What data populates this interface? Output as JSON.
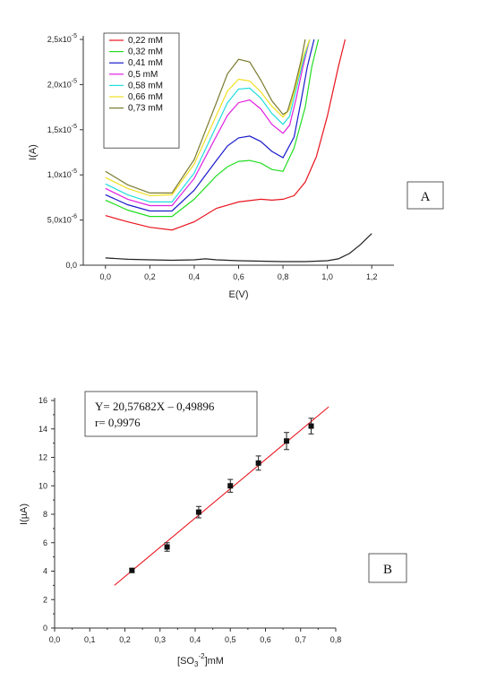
{
  "chart_data": [
    {
      "type": "line",
      "panel_label": "A",
      "xlabel": "E(V)",
      "ylabel": "I(A)",
      "xlim": [
        -0.1,
        1.3
      ],
      "ylim": [
        0,
        2.5e-05
      ],
      "x_ticks": [
        0.0,
        0.2,
        0.4,
        0.6,
        0.8,
        1.0,
        1.2
      ],
      "x_tick_labels": [
        "0,0",
        "0,2",
        "0,4",
        "0,6",
        "0,8",
        "1,0",
        "1,2"
      ],
      "y_ticks": [
        0,
        5e-06,
        1e-05,
        1.5e-05,
        2e-05,
        2.5e-05
      ],
      "y_tick_labels": [
        {
          "mantissa": "0,0",
          "exp": ""
        },
        {
          "mantissa": "5,0x10",
          "exp": "-6"
        },
        {
          "mantissa": "1,0x10",
          "exp": "-5"
        },
        {
          "mantissa": "1,5x10",
          "exp": "-5"
        },
        {
          "mantissa": "2,0x10",
          "exp": "-5"
        },
        {
          "mantissa": "2,5x10",
          "exp": "-5"
        }
      ],
      "legend_position": "top-left",
      "grid": false,
      "series": [
        {
          "name": "",
          "color": "#222222",
          "x": [
            0.0,
            0.1,
            0.2,
            0.3,
            0.4,
            0.45,
            0.5,
            0.6,
            0.7,
            0.8,
            0.9,
            1.0,
            1.05,
            1.1,
            1.15,
            1.2
          ],
          "y": [
            8e-07,
            6.5e-07,
            6e-07,
            5.5e-07,
            6e-07,
            7e-07,
            6e-07,
            5e-07,
            4.5e-07,
            4e-07,
            4e-07,
            5e-07,
            7e-07,
            1.3e-06,
            2.3e-06,
            3.5e-06
          ]
        },
        {
          "name": "0,22 mM",
          "color": "#e8141e",
          "x": [
            0.0,
            0.1,
            0.2,
            0.3,
            0.4,
            0.5,
            0.6,
            0.7,
            0.75,
            0.8,
            0.85,
            0.9,
            0.95,
            1.0,
            1.05,
            1.08
          ],
          "y": [
            5.5e-06,
            4.8e-06,
            4.2e-06,
            3.9e-06,
            4.8e-06,
            6.3e-06,
            7e-06,
            7.3e-06,
            7.2e-06,
            7.3e-06,
            7.7e-06,
            9.2e-06,
            1.2e-05,
            1.65e-05,
            2.2e-05,
            2.5e-05
          ]
        },
        {
          "name": "0,32 mM",
          "color": "#22dd22",
          "x": [
            0.0,
            0.1,
            0.2,
            0.3,
            0.4,
            0.5,
            0.55,
            0.6,
            0.65,
            0.7,
            0.75,
            0.8,
            0.85,
            0.9,
            0.93,
            0.96
          ],
          "y": [
            7.2e-06,
            6.1e-06,
            5.4e-06,
            5.4e-06,
            7.3e-06,
            9.9e-06,
            1.09e-05,
            1.15e-05,
            1.16e-05,
            1.13e-05,
            1.06e-05,
            1.04e-05,
            1.3e-05,
            1.75e-05,
            2.2e-05,
            2.5e-05
          ]
        },
        {
          "name": "0,41 mM",
          "color": "#1a1acc",
          "x": [
            0.0,
            0.1,
            0.2,
            0.3,
            0.4,
            0.5,
            0.55,
            0.6,
            0.65,
            0.7,
            0.75,
            0.8,
            0.85,
            0.88,
            0.91,
            0.94
          ],
          "y": [
            7.8e-06,
            6.7e-06,
            6e-06,
            6e-06,
            8.3e-06,
            1.16e-05,
            1.32e-05,
            1.41e-05,
            1.43e-05,
            1.37e-05,
            1.26e-05,
            1.19e-05,
            1.42e-05,
            1.8e-05,
            2.2e-05,
            2.5e-05
          ]
        },
        {
          "name": "0,5 mM",
          "color": "#e020e0",
          "x": [
            0.0,
            0.1,
            0.2,
            0.3,
            0.4,
            0.5,
            0.55,
            0.6,
            0.65,
            0.7,
            0.75,
            0.8,
            0.83,
            0.86,
            0.89,
            0.92
          ],
          "y": [
            8.5e-06,
            7.3e-06,
            6.6e-06,
            6.6e-06,
            9.6e-06,
            1.43e-05,
            1.66e-05,
            1.8e-05,
            1.83e-05,
            1.73e-05,
            1.56e-05,
            1.46e-05,
            1.55e-05,
            1.85e-05,
            2.2e-05,
            2.5e-05
          ]
        },
        {
          "name": "0,58 mM",
          "color": "#22dddd",
          "x": [
            0.0,
            0.1,
            0.2,
            0.3,
            0.4,
            0.5,
            0.55,
            0.6,
            0.65,
            0.7,
            0.75,
            0.8,
            0.83,
            0.86,
            0.89,
            0.92
          ],
          "y": [
            9e-06,
            7.8e-06,
            7e-06,
            7e-06,
            1.02e-05,
            1.54e-05,
            1.8e-05,
            1.95e-05,
            1.96e-05,
            1.85e-05,
            1.68e-05,
            1.56e-05,
            1.65e-05,
            1.95e-05,
            2.25e-05,
            2.5e-05
          ]
        },
        {
          "name": "0,66 mM",
          "color": "#f0e020",
          "x": [
            0.0,
            0.1,
            0.2,
            0.3,
            0.4,
            0.5,
            0.55,
            0.6,
            0.65,
            0.7,
            0.75,
            0.8,
            0.83,
            0.86,
            0.89,
            0.92
          ],
          "y": [
            9.7e-06,
            8.5e-06,
            7.7e-06,
            7.8e-06,
            1.12e-05,
            1.66e-05,
            1.93e-05,
            2.06e-05,
            2.04e-05,
            1.92e-05,
            1.76e-05,
            1.64e-05,
            1.73e-05,
            2e-05,
            2.3e-05,
            2.5e-05
          ]
        },
        {
          "name": "0,73 mM",
          "color": "#7a7a30",
          "x": [
            0.0,
            0.1,
            0.2,
            0.3,
            0.4,
            0.5,
            0.55,
            0.6,
            0.65,
            0.7,
            0.75,
            0.8,
            0.82,
            0.85,
            0.88,
            0.9
          ],
          "y": [
            1.04e-05,
            8.9e-06,
            8e-06,
            8e-06,
            1.17e-05,
            1.8e-05,
            2.12e-05,
            2.28e-05,
            2.25e-05,
            2.05e-05,
            1.82e-05,
            1.67e-05,
            1.7e-05,
            1.95e-05,
            2.25e-05,
            2.5e-05
          ]
        }
      ]
    },
    {
      "type": "scatter",
      "panel_label": "B",
      "xlabel_parts": {
        "pre": "[SO",
        "sub": "3",
        "sup": "-2",
        "post": "]mM"
      },
      "ylabel": "I(µA)",
      "xlim": [
        0,
        0.8
      ],
      "ylim": [
        0,
        16
      ],
      "x_ticks": [
        0.0,
        0.1,
        0.2,
        0.3,
        0.4,
        0.5,
        0.6,
        0.7,
        0.8
      ],
      "x_tick_labels": [
        "0,0",
        "0,1",
        "0,2",
        "0,3",
        "0,4",
        "0,5",
        "0,6",
        "0,7",
        "0,8"
      ],
      "y_ticks": [
        0,
        2,
        4,
        6,
        8,
        10,
        12,
        14,
        16
      ],
      "y_tick_labels": [
        "0",
        "2",
        "4",
        "6",
        "8",
        "10",
        "12",
        "14",
        "16"
      ],
      "equation": "Y= 20,57682X – 0,49896",
      "correlation": "r= 0,9976",
      "grid": false,
      "points": {
        "x": [
          0.22,
          0.32,
          0.41,
          0.5,
          0.58,
          0.66,
          0.73
        ],
        "y": [
          4.05,
          5.7,
          8.15,
          10.0,
          11.6,
          13.15,
          14.2
        ],
        "err": [
          0.15,
          0.3,
          0.4,
          0.45,
          0.5,
          0.6,
          0.55
        ]
      },
      "fit_line": {
        "color": "#e8141e",
        "slope": 20.57682,
        "intercept": -0.49896,
        "x_range": [
          0.17,
          0.78
        ]
      }
    }
  ]
}
